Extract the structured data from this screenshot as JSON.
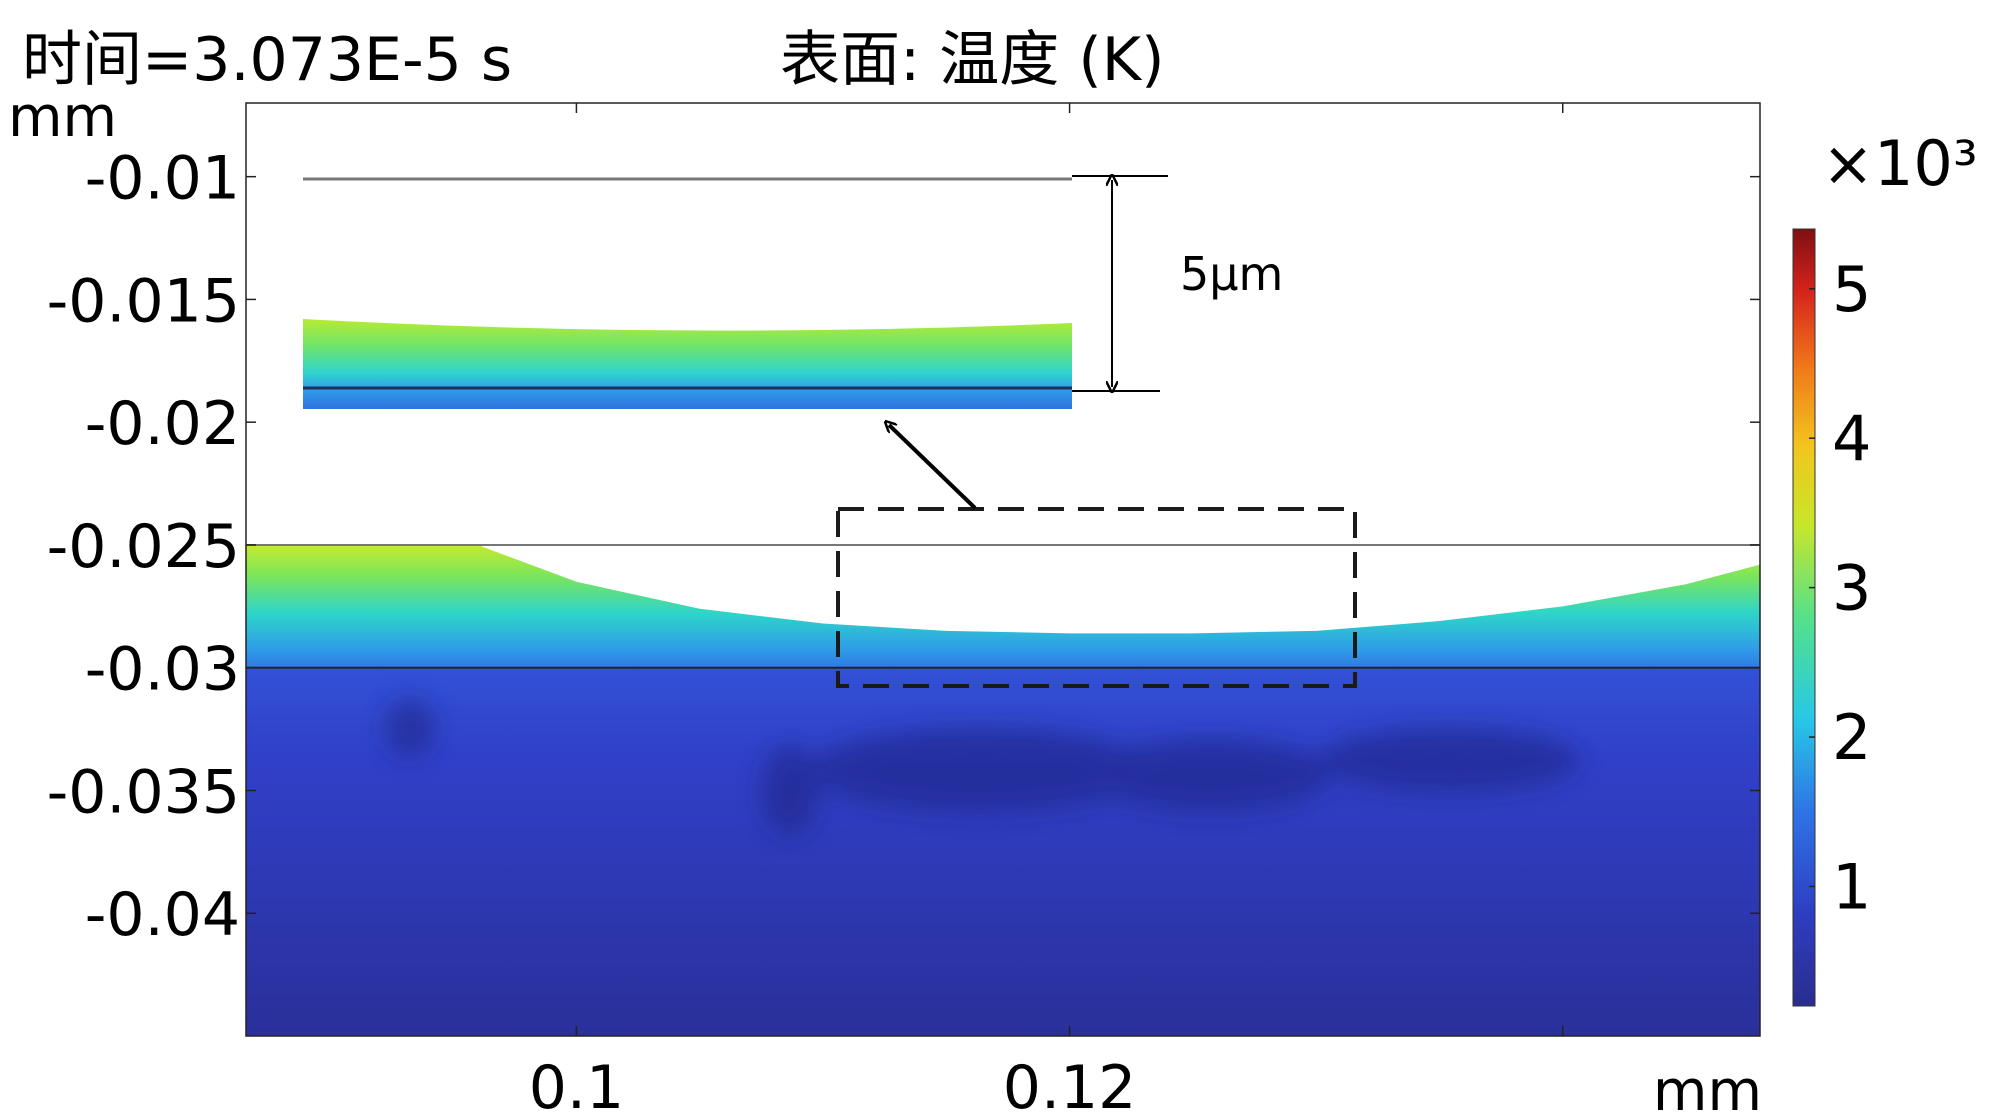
{
  "chart_data": {
    "type": "heatmap",
    "title_left": "时间=3.073E-5 s",
    "title_right": "表面: 温度 (K)",
    "xlabel": "mm",
    "ylabel": "mm",
    "xlim": [
      0.0866,
      0.148
    ],
    "ylim": [
      -0.045,
      -0.007
    ],
    "x_ticks": [
      {
        "value": 0.1,
        "label": "0.1"
      },
      {
        "value": 0.12,
        "label": "0.12"
      }
    ],
    "x_minor_ticks": [
      0.14
    ],
    "y_ticks": [
      {
        "value": -0.01,
        "label": "-0.01"
      },
      {
        "value": -0.015,
        "label": "-0.015"
      },
      {
        "value": -0.02,
        "label": "-0.02"
      },
      {
        "value": -0.025,
        "label": "-0.025"
      },
      {
        "value": -0.03,
        "label": "-0.03"
      },
      {
        "value": -0.035,
        "label": "-0.035"
      },
      {
        "value": -0.04,
        "label": "-0.04"
      }
    ],
    "grid": false,
    "colormap": "jet",
    "colorbar": {
      "multiplier": "×10³",
      "range": [
        0.2,
        5.4
      ],
      "ticks": [
        {
          "value": 1,
          "label": "1"
        },
        {
          "value": 2,
          "label": "2"
        },
        {
          "value": 3,
          "label": "3"
        },
        {
          "value": 4,
          "label": "4"
        },
        {
          "value": 5,
          "label": "5"
        }
      ]
    },
    "reference_lines_y": [
      -0.025,
      -0.03
    ],
    "melt_surface": {
      "x": [
        0.0866,
        0.096,
        0.1,
        0.105,
        0.11,
        0.115,
        0.12,
        0.125,
        0.13,
        0.135,
        0.14,
        0.145,
        0.148
      ],
      "y": [
        -0.025,
        -0.025,
        -0.0265,
        -0.0276,
        -0.0282,
        -0.0285,
        -0.0286,
        -0.0286,
        -0.0285,
        -0.0281,
        -0.0275,
        -0.0266,
        -0.0258
      ]
    },
    "surface_temperature_k": 3300,
    "interface_temperature_k": 1500,
    "substrate_temperature_k": 650,
    "inset": {
      "annotation": "5μm"
    }
  }
}
